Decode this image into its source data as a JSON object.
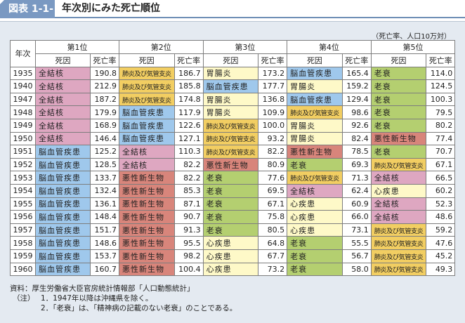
{
  "header": {
    "badge": "図表 1-1-4",
    "title": "年次別にみた死亡順位"
  },
  "unit": "（死亡率、人口10万対）",
  "table": {
    "year_header": "年次",
    "rank_headers": [
      "第1位",
      "第2位",
      "第3位",
      "第4位",
      "第5位"
    ],
    "cause_header": "死因",
    "rate_header": "死亡率",
    "cause_colors": {
      "全結核": "#dea7c1",
      "肺炎及び気管支炎": "#f2ce62",
      "脳血管疾患": "#9fc8ec",
      "胃腸炎": "#fef9c8",
      "老衰": "#b4cf70",
      "悪性新生物": "#d8857b",
      "心疾患": "#fef9c8"
    },
    "rows": [
      {
        "year": "1935",
        "ranks": [
          [
            "全結核",
            "190.8"
          ],
          [
            "肺炎及び気管支炎",
            "186.7"
          ],
          [
            "胃腸炎",
            "173.2"
          ],
          [
            "脳血管疾患",
            "165.4"
          ],
          [
            "老衰",
            "114.0"
          ]
        ]
      },
      {
        "year": "1940",
        "ranks": [
          [
            "全結核",
            "212.9"
          ],
          [
            "肺炎及び気管支炎",
            "185.8"
          ],
          [
            "脳血管疾患",
            "177.7"
          ],
          [
            "胃腸炎",
            "159.2"
          ],
          [
            "老衰",
            "124.5"
          ]
        ]
      },
      {
        "year": "1947",
        "ranks": [
          [
            "全結核",
            "187.2"
          ],
          [
            "肺炎及び気管支炎",
            "174.8"
          ],
          [
            "胃腸炎",
            "136.8"
          ],
          [
            "脳血管疾患",
            "129.4"
          ],
          [
            "老衰",
            "100.3"
          ]
        ]
      },
      {
        "year": "1948",
        "ranks": [
          [
            "全結核",
            "179.9"
          ],
          [
            "脳血管疾患",
            "117.9"
          ],
          [
            "胃腸炎",
            "109.9"
          ],
          [
            "肺炎及び気管支炎",
            "98.6"
          ],
          [
            "老衰",
            "79.5"
          ]
        ]
      },
      {
        "year": "1949",
        "ranks": [
          [
            "全結核",
            "168.9"
          ],
          [
            "脳血管疾患",
            "122.6"
          ],
          [
            "肺炎及び気管支炎",
            "100.0"
          ],
          [
            "胃腸炎",
            "92.6"
          ],
          [
            "老衰",
            "80.2"
          ]
        ]
      },
      {
        "year": "1950",
        "ranks": [
          [
            "全結核",
            "146.4"
          ],
          [
            "脳血管疾患",
            "127.1"
          ],
          [
            "肺炎及び気管支炎",
            "93.2"
          ],
          [
            "胃腸炎",
            "82.4"
          ],
          [
            "悪性新生物",
            "77.4"
          ]
        ]
      },
      {
        "year": "1951",
        "ranks": [
          [
            "脳血管疾患",
            "125.2"
          ],
          [
            "全結核",
            "110.3"
          ],
          [
            "肺炎及び気管支炎",
            "82.2"
          ],
          [
            "悪性新生物",
            "78.5"
          ],
          [
            "老衰",
            "70.7"
          ]
        ]
      },
      {
        "year": "1952",
        "ranks": [
          [
            "脳血管疾患",
            "128.5"
          ],
          [
            "全結核",
            "82.2"
          ],
          [
            "悪性新生物",
            "80.9"
          ],
          [
            "老衰",
            "69.3"
          ],
          [
            "肺炎及び気管支炎",
            "67.1"
          ]
        ]
      },
      {
        "year": "1953",
        "ranks": [
          [
            "脳血管疾患",
            "133.7"
          ],
          [
            "悪性新生物",
            "82.2"
          ],
          [
            "老衰",
            "77.6"
          ],
          [
            "肺炎及び気管支炎",
            "71.3"
          ],
          [
            "全結核",
            "66.5"
          ]
        ]
      },
      {
        "year": "1954",
        "ranks": [
          [
            "脳血管疾患",
            "132.4"
          ],
          [
            "悪性新生物",
            "85.3"
          ],
          [
            "老衰",
            "69.5"
          ],
          [
            "全結核",
            "62.4"
          ],
          [
            "心疾患",
            "60.2"
          ]
        ]
      },
      {
        "year": "1955",
        "ranks": [
          [
            "脳血管疾患",
            "136.1"
          ],
          [
            "悪性新生物",
            "87.1"
          ],
          [
            "老衰",
            "67.1"
          ],
          [
            "心疾患",
            "60.9"
          ],
          [
            "全結核",
            "52.3"
          ]
        ]
      },
      {
        "year": "1956",
        "ranks": [
          [
            "脳血管疾患",
            "148.4"
          ],
          [
            "悪性新生物",
            "90.7"
          ],
          [
            "老衰",
            "75.8"
          ],
          [
            "心疾患",
            "66.0"
          ],
          [
            "全結核",
            "48.6"
          ]
        ]
      },
      {
        "year": "1957",
        "ranks": [
          [
            "脳血管疾患",
            "151.7"
          ],
          [
            "悪性新生物",
            "91.3"
          ],
          [
            "老衰",
            "80.5"
          ],
          [
            "心疾患",
            "73.1"
          ],
          [
            "肺炎及び気管支炎",
            "59.2"
          ]
        ]
      },
      {
        "year": "1958",
        "ranks": [
          [
            "脳血管疾患",
            "148.6"
          ],
          [
            "悪性新生物",
            "95.5"
          ],
          [
            "心疾患",
            "64.8"
          ],
          [
            "老衰",
            "55.5"
          ],
          [
            "肺炎及び気管支炎",
            "47.6"
          ]
        ]
      },
      {
        "year": "1959",
        "ranks": [
          [
            "脳血管疾患",
            "153.7"
          ],
          [
            "悪性新生物",
            "98.2"
          ],
          [
            "心疾患",
            "67.7"
          ],
          [
            "老衰",
            "56.7"
          ],
          [
            "肺炎及び気管支炎",
            "45.2"
          ]
        ]
      },
      {
        "year": "1960",
        "ranks": [
          [
            "脳血管疾患",
            "160.7"
          ],
          [
            "悪性新生物",
            "100.4"
          ],
          [
            "心疾患",
            "73.2"
          ],
          [
            "老衰",
            "58.0"
          ],
          [
            "肺炎及び気管支炎",
            "49.3"
          ]
        ]
      }
    ]
  },
  "notes": {
    "source": "資料：厚生労働省大臣官房統計情報部「人口動態統計」",
    "label": "（注）",
    "items": [
      "1．1947年以降は沖縄県を除く。",
      "2．「老衰」は、「精神病の記載のない老衰」のことである。"
    ]
  }
}
